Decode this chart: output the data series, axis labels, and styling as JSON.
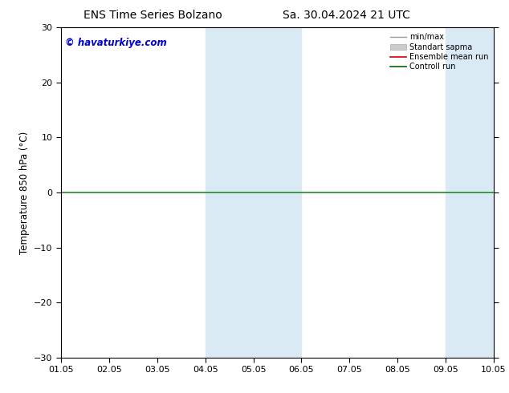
{
  "title_left": "ENS Time Series Bolzano",
  "title_right": "Sa. 30.04.2024 21 UTC",
  "ylabel": "Temperature 850 hPa (°C)",
  "xlabel_ticks": [
    "01.05",
    "02.05",
    "03.05",
    "04.05",
    "05.05",
    "06.05",
    "07.05",
    "08.05",
    "09.05",
    "10.05"
  ],
  "ylim": [
    -30,
    30
  ],
  "yticks": [
    -30,
    -20,
    -10,
    0,
    10,
    20,
    30
  ],
  "watermark": "© havaturkiye.com",
  "shaded_regions": [
    {
      "xstart": 3.0,
      "xend": 4.0,
      "color": "#daeaf5"
    },
    {
      "xstart": 4.0,
      "xend": 5.0,
      "color": "#daeaf5"
    },
    {
      "xstart": 8.0,
      "xend": 9.0,
      "color": "#daeaf5"
    },
    {
      "xstart": 9.0,
      "xend": 10.0,
      "color": "#daeaf5"
    }
  ],
  "legend_entries": [
    {
      "label": "min/max",
      "color": "#999999",
      "lw": 1.0,
      "ls": "-",
      "type": "line"
    },
    {
      "label": "Standart sapma",
      "color": "#cccccc",
      "lw": 8,
      "ls": "-",
      "type": "band"
    },
    {
      "label": "Ensemble mean run",
      "color": "#cc0000",
      "lw": 1.2,
      "ls": "-",
      "type": "line"
    },
    {
      "label": "Controll run",
      "color": "#006600",
      "lw": 1.2,
      "ls": "-",
      "type": "line"
    }
  ],
  "hline_y": 0,
  "hline_color": "#228B22",
  "hline_lw": 1.2,
  "background_color": "#ffffff",
  "title_fontsize": 10,
  "watermark_color": "#0000cc",
  "watermark_fontsize": 8.5,
  "num_xticks": 10,
  "xlim": [
    0,
    9
  ]
}
